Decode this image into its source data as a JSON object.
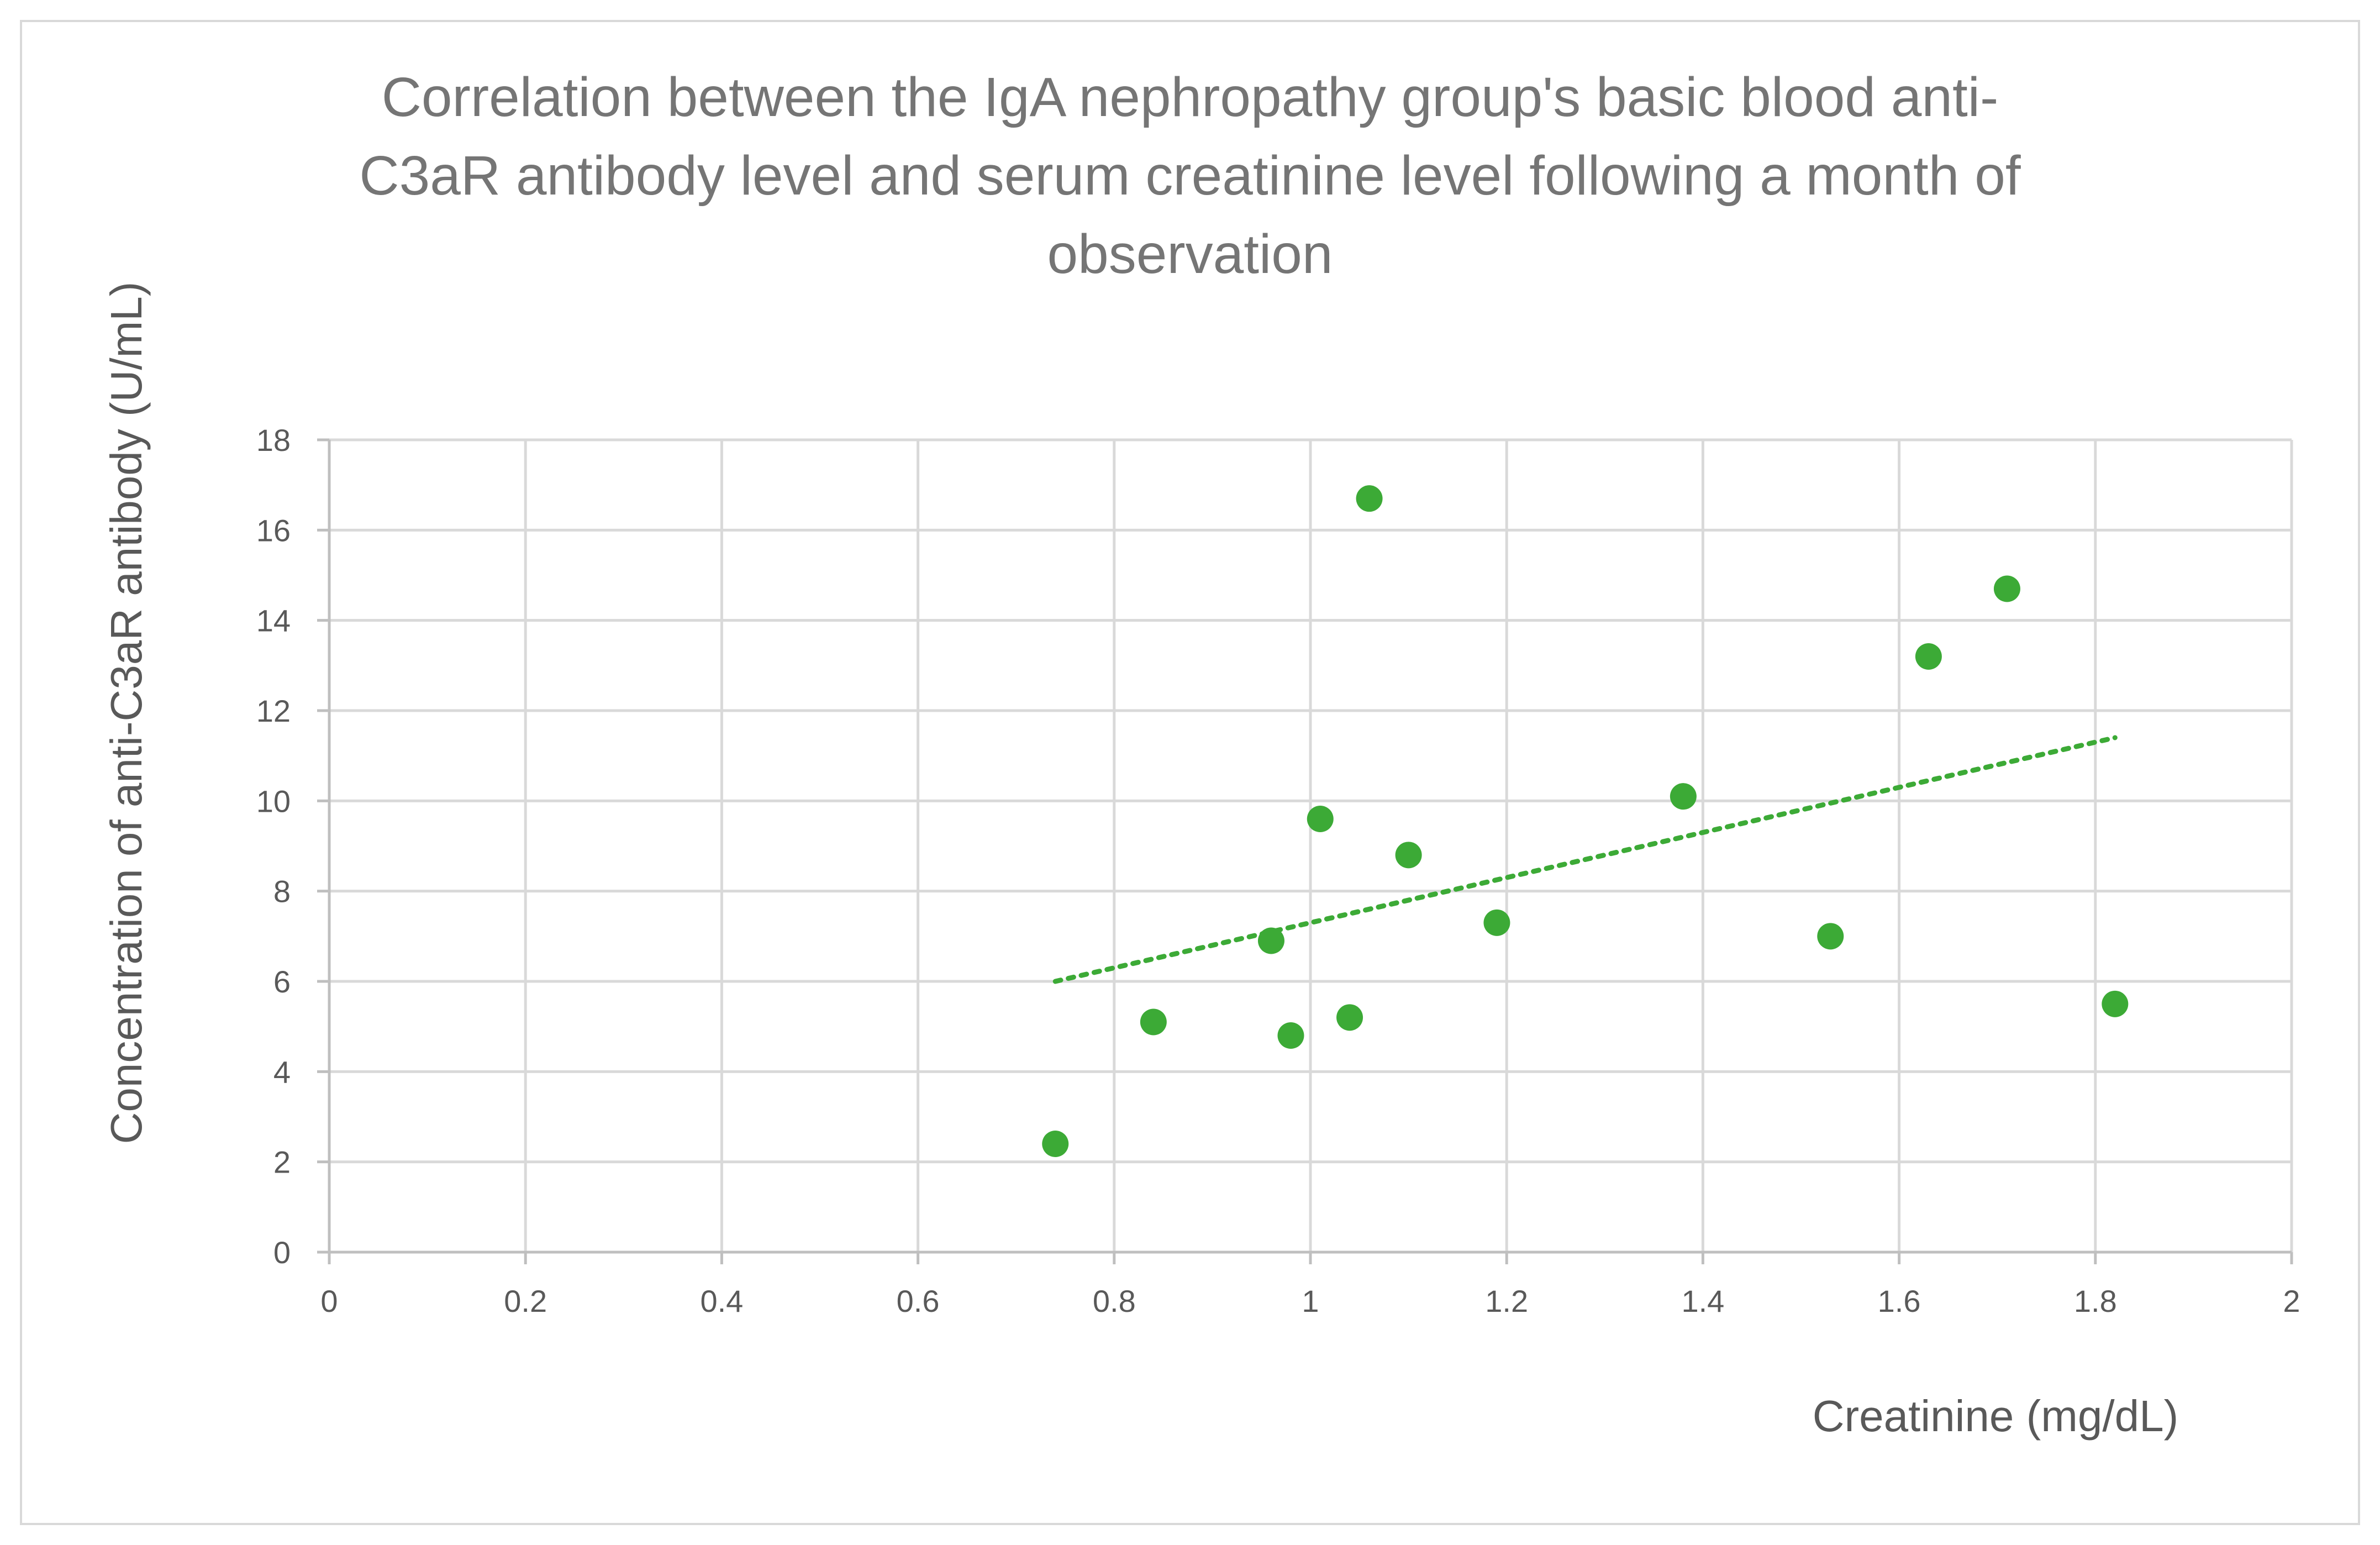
{
  "chart_data": {
    "type": "scatter",
    "title_lines": [
      "Correlation between the IgA nephropathy group's basic blood anti-",
      "C3aR antibody level and serum creatinine level following a month of",
      "observation"
    ],
    "xlabel": "Creatinine (mg/dL)",
    "ylabel": "Concentration of anti-C3aR antibody (U/mL)",
    "xlim": [
      0,
      2
    ],
    "ylim": [
      0,
      18
    ],
    "x_ticks": [
      0,
      0.2,
      0.4,
      0.6,
      0.8,
      1,
      1.2,
      1.4,
      1.6,
      1.8,
      2
    ],
    "x_tick_labels": [
      "0",
      "0.2",
      "0.4",
      "0.6",
      "0.8",
      "1",
      "1.2",
      "1.4",
      "1.6",
      "1.8",
      "2"
    ],
    "y_ticks": [
      0,
      2,
      4,
      6,
      8,
      10,
      12,
      14,
      16,
      18
    ],
    "y_tick_labels": [
      "0",
      "2",
      "4",
      "6",
      "8",
      "10",
      "12",
      "14",
      "16",
      "18"
    ],
    "grid": true,
    "marker_color": "#3caa36",
    "trendline": {
      "type": "linear",
      "style": "dotted",
      "color": "#3caa36",
      "start": {
        "x": 0.74,
        "y": 6.0
      },
      "end": {
        "x": 1.82,
        "y": 11.4
      }
    },
    "series": [
      {
        "name": "IgA nephropathy group",
        "points": [
          {
            "x": 0.74,
            "y": 2.4
          },
          {
            "x": 0.84,
            "y": 5.1
          },
          {
            "x": 0.96,
            "y": 6.9
          },
          {
            "x": 0.98,
            "y": 4.8
          },
          {
            "x": 1.01,
            "y": 9.6
          },
          {
            "x": 1.04,
            "y": 5.2
          },
          {
            "x": 1.06,
            "y": 16.7
          },
          {
            "x": 1.1,
            "y": 8.8
          },
          {
            "x": 1.19,
            "y": 7.3
          },
          {
            "x": 1.38,
            "y": 10.1
          },
          {
            "x": 1.53,
            "y": 7.0
          },
          {
            "x": 1.63,
            "y": 13.2
          },
          {
            "x": 1.71,
            "y": 14.7
          },
          {
            "x": 1.82,
            "y": 5.5
          }
        ]
      }
    ]
  }
}
